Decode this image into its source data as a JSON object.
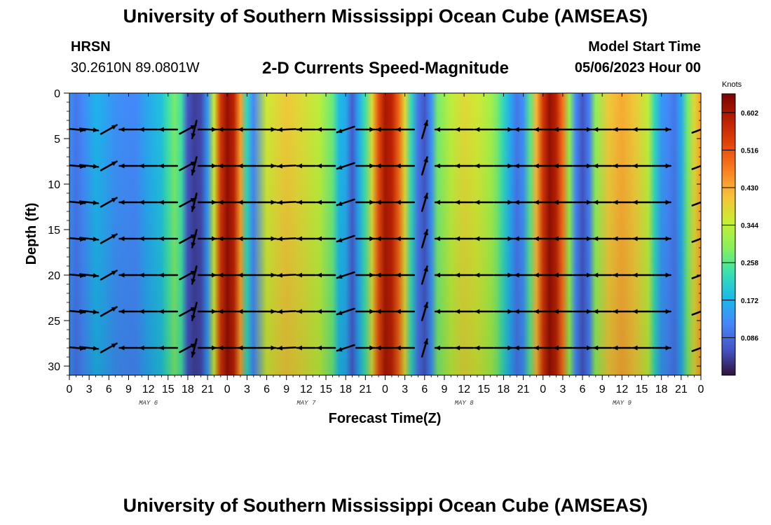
{
  "header": {
    "title": "University of Southern Mississippi Ocean Cube (AMSEAS)",
    "station": "HRSN",
    "coordinates": "30.2610N  89.0801W",
    "subtitle": "2-D Currents Speed-Magnitude",
    "start_label": "Model Start Time",
    "start_value": "05/06/2023 Hour 00"
  },
  "footer": {
    "title": "University of Southern Mississippi Ocean Cube (AMSEAS)"
  },
  "chart_data": {
    "type": "heatmap",
    "title": "2-D Currents Speed-Magnitude",
    "xlabel": "Forecast Time(Z)",
    "ylabel": "Depth (ft)",
    "x_range_hours": [
      0,
      96
    ],
    "y_range_ft": [
      0,
      31
    ],
    "y_inverted": true,
    "x_tick_hours": [
      0,
      3,
      6,
      9,
      12,
      15,
      18,
      21,
      24,
      27,
      30,
      33,
      36,
      39,
      42,
      45,
      48,
      51,
      54,
      57,
      60,
      63,
      66,
      69,
      72,
      75,
      78,
      81,
      84,
      87,
      90,
      93,
      96
    ],
    "x_tick_labels": [
      "0",
      "3",
      "6",
      "9",
      "12",
      "15",
      "18",
      "21",
      "0",
      "3",
      "6",
      "9",
      "12",
      "15",
      "18",
      "21",
      "0",
      "3",
      "6",
      "9",
      "12",
      "15",
      "18",
      "21",
      "0",
      "3",
      "6",
      "9",
      "12",
      "15",
      "18",
      "21",
      "0"
    ],
    "y_ticks": [
      0,
      5,
      10,
      15,
      20,
      25,
      30
    ],
    "day_labels": [
      {
        "label": "MAY 6",
        "hour": 12
      },
      {
        "label": "MAY 7",
        "hour": 36
      },
      {
        "label": "MAY 8",
        "hour": 60
      },
      {
        "label": "MAY 9",
        "hour": 84
      }
    ],
    "colorbar": {
      "unit": "Knots",
      "min": 0,
      "max": 0.645,
      "tick_values": [
        0.602,
        0.516,
        0.43,
        0.344,
        0.258,
        0.172,
        0.086
      ],
      "tick_labels": [
        "0.602",
        "0.516",
        "0.430",
        "0.344",
        "0.258",
        "0.172",
        "0.086"
      ],
      "colors": [
        "#30123b",
        "#4454c4",
        "#4686fb",
        "#1ab9ea",
        "#3ae0b0",
        "#8af05a",
        "#c8ef34",
        "#f7c13a",
        "#fb8022",
        "#e4460a",
        "#b91e02",
        "#7a0403"
      ]
    },
    "speed_profile_hours": [
      0,
      1,
      2,
      4,
      5,
      7,
      10,
      12,
      14,
      15,
      16,
      17,
      18,
      19,
      20,
      21,
      22,
      23,
      24,
      25,
      26,
      27,
      28,
      30,
      33,
      35,
      38,
      40,
      41,
      42,
      43,
      44,
      45,
      46,
      47,
      48,
      49,
      50,
      51,
      52,
      53,
      54,
      55,
      56,
      58,
      60,
      62,
      64,
      65,
      66,
      67,
      68,
      69,
      70,
      71,
      72,
      73,
      74,
      75,
      76,
      77,
      78,
      79,
      80,
      82,
      84,
      86,
      88,
      89,
      90,
      91,
      92,
      93,
      94,
      95,
      96
    ],
    "speed_profile_knots": [
      0.13,
      0.1,
      0.12,
      0.17,
      0.16,
      0.13,
      0.12,
      0.16,
      0.19,
      0.24,
      0.28,
      0.24,
      0.06,
      0.04,
      0.05,
      0.14,
      0.36,
      0.55,
      0.62,
      0.58,
      0.44,
      0.22,
      0.12,
      0.36,
      0.4,
      0.38,
      0.34,
      0.27,
      0.18,
      0.16,
      0.07,
      0.16,
      0.24,
      0.38,
      0.52,
      0.6,
      0.58,
      0.5,
      0.38,
      0.22,
      0.1,
      0.06,
      0.13,
      0.28,
      0.34,
      0.38,
      0.36,
      0.32,
      0.28,
      0.22,
      0.16,
      0.1,
      0.13,
      0.26,
      0.42,
      0.55,
      0.62,
      0.58,
      0.48,
      0.3,
      0.12,
      0.06,
      0.11,
      0.3,
      0.4,
      0.43,
      0.4,
      0.34,
      0.22,
      0.14,
      0.12,
      0.1,
      0.16,
      0.28,
      0.38,
      0.44
    ],
    "vector_depths_ft": [
      4,
      8,
      12,
      16,
      20,
      24,
      28
    ],
    "vectors": [
      {
        "hour": 1,
        "dx": 1,
        "dy": 0.1
      },
      {
        "hour": 3,
        "dx": 0.9,
        "dy": 0.1
      },
      {
        "hour": 6,
        "dx": 0.8,
        "dy": -0.45
      },
      {
        "hour": 9,
        "dx": -1,
        "dy": 0
      },
      {
        "hour": 12,
        "dx": -1,
        "dy": 0
      },
      {
        "hour": 15,
        "dx": -1,
        "dy": 0
      },
      {
        "hour": 18,
        "dx": 0.75,
        "dy": -0.4
      },
      {
        "hour": 19,
        "dx": -0.25,
        "dy": 1
      },
      {
        "hour": 21,
        "dx": 1,
        "dy": 0
      },
      {
        "hour": 24,
        "dx": -1,
        "dy": 0
      },
      {
        "hour": 27,
        "dx": -1,
        "dy": 0
      },
      {
        "hour": 30,
        "dx": 1,
        "dy": 0
      },
      {
        "hour": 33,
        "dx": -1,
        "dy": 0.05
      },
      {
        "hour": 36,
        "dx": -1,
        "dy": 0
      },
      {
        "hour": 39,
        "dx": -1,
        "dy": 0
      },
      {
        "hour": 42,
        "dx": -0.9,
        "dy": 0.3
      },
      {
        "hour": 45,
        "dx": 1,
        "dy": 0
      },
      {
        "hour": 48,
        "dx": -1,
        "dy": 0
      },
      {
        "hour": 51,
        "dx": -1,
        "dy": 0
      },
      {
        "hour": 54,
        "dx": 0.3,
        "dy": -1
      },
      {
        "hour": 57,
        "dx": -1,
        "dy": 0
      },
      {
        "hour": 60,
        "dx": -1,
        "dy": 0
      },
      {
        "hour": 63,
        "dx": -1,
        "dy": 0
      },
      {
        "hour": 66,
        "dx": 1,
        "dy": 0
      },
      {
        "hour": 69,
        "dx": -1,
        "dy": 0
      },
      {
        "hour": 72,
        "dx": -1,
        "dy": 0
      },
      {
        "hour": 75,
        "dx": -1,
        "dy": 0
      },
      {
        "hour": 78,
        "dx": 1,
        "dy": 0
      },
      {
        "hour": 81,
        "dx": -1,
        "dy": 0
      },
      {
        "hour": 84,
        "dx": -1,
        "dy": 0
      },
      {
        "hour": 87,
        "dx": -1,
        "dy": 0
      },
      {
        "hour": 90,
        "dx": 1,
        "dy": 0
      },
      {
        "hour": 96,
        "dx": 0.8,
        "dy": -0.3
      }
    ]
  }
}
